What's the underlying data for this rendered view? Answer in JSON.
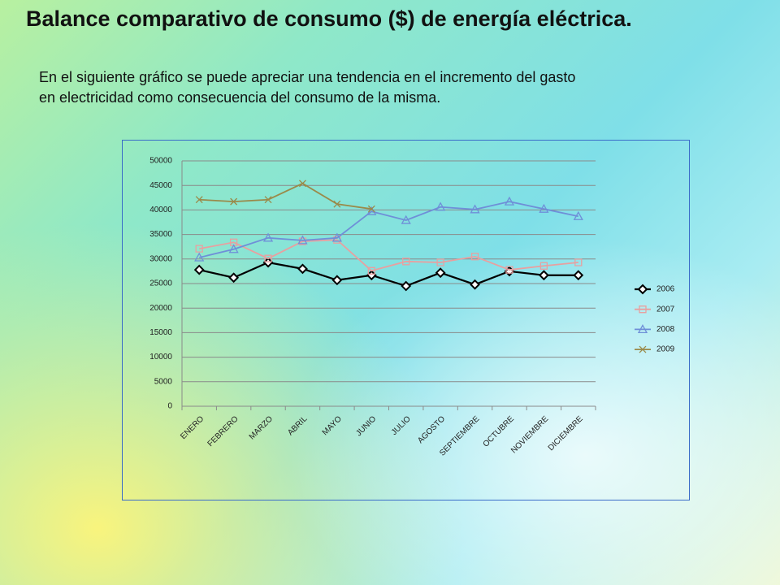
{
  "title": "Balance comparativo de consumo ($) de energía eléctrica.",
  "body": [
    "En el siguiente gráfico se puede apreciar una tendencia en el incremento del gasto",
    "en electricidad como consecuencia del consumo de la misma."
  ],
  "chart_data": {
    "type": "line",
    "categories": [
      "ENERO",
      "FEBRERO",
      "MARZO",
      "ABRIL",
      "MAYO",
      "JUNIO",
      "JULIO",
      "AGOSTO",
      "SEPTIEMBRE",
      "OCTUBRE",
      "NOVIEMBRE",
      "DICIEMBRE"
    ],
    "series": [
      {
        "name": "2006",
        "color": "#000000",
        "marker": "diamond",
        "values": [
          27800,
          26200,
          29300,
          28000,
          25700,
          26700,
          24500,
          27200,
          24800,
          27500,
          26700,
          26700
        ]
      },
      {
        "name": "2007",
        "color": "#e8a0a0",
        "marker": "square",
        "values": [
          32100,
          33400,
          30100,
          33600,
          33900,
          27600,
          29500,
          29300,
          30500,
          27800,
          28600,
          29300
        ]
      },
      {
        "name": "2008",
        "color": "#6f8fd8",
        "marker": "triangle",
        "values": [
          30300,
          32000,
          34300,
          33800,
          34300,
          39700,
          37900,
          40600,
          40100,
          41700,
          40200,
          38700
        ]
      },
      {
        "name": "2009",
        "color": "#9a8a4a",
        "marker": "x",
        "values": [
          42100,
          41700,
          42100,
          45400,
          41200,
          40200,
          null,
          null,
          null,
          null,
          null,
          null
        ]
      }
    ],
    "ylim": [
      0,
      50000
    ],
    "yticks": [
      0,
      5000,
      10000,
      15000,
      20000,
      25000,
      30000,
      35000,
      40000,
      45000,
      50000
    ],
    "grid": true,
    "legend": "right"
  }
}
